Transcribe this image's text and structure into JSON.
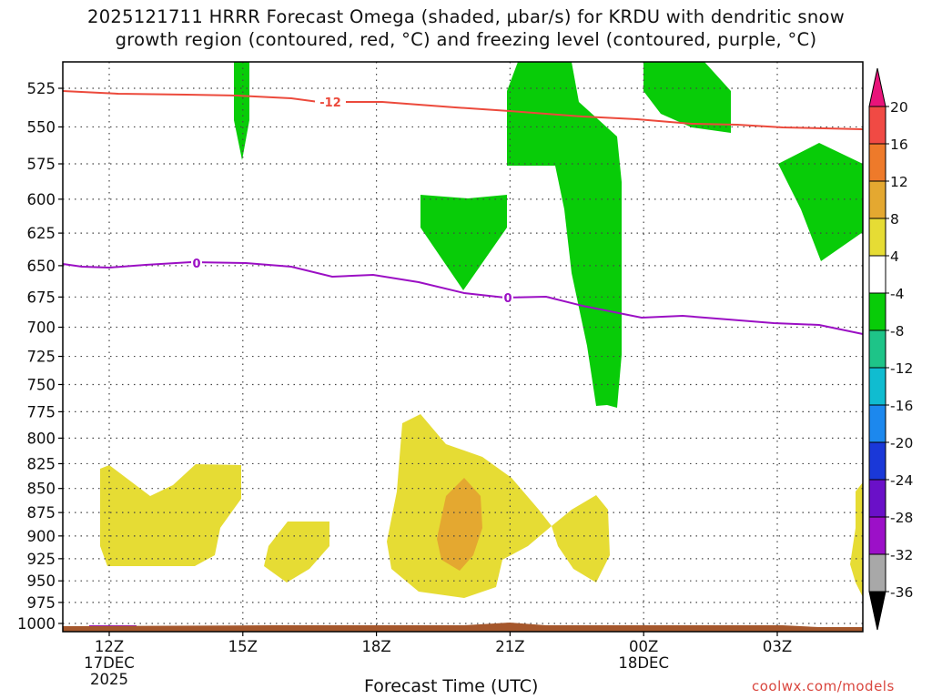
{
  "title_line1": "2025121711 HRRR Forecast Omega (shaded, µbar/s) for KRDU with dendritic snow",
  "title_line2": "growth region (contoured, red, °C) and freezing level (contoured, purple, °C)",
  "x_axis_title": "Forecast Time (UTC)",
  "credit": "coolwx.com/models",
  "colors": {
    "snow_growth_contour": "#ec4a3c",
    "freezing_contour": "#9b0fc4",
    "rising_shade": "#08cc08",
    "sinking_weak": "#e6dc34",
    "sinking_mod": "#e4a830",
    "terrain": "#a5572c"
  },
  "chart_data": {
    "type": "contour",
    "x_ticks": [
      {
        "label": [
          "12Z",
          "17DEC",
          "2025"
        ]
      },
      {
        "label": [
          "15Z"
        ]
      },
      {
        "label": [
          "18Z"
        ]
      },
      {
        "label": [
          "21Z"
        ]
      },
      {
        "label": [
          "00Z",
          "18DEC"
        ]
      },
      {
        "label": [
          "03Z"
        ]
      }
    ],
    "y_ticks": [
      "525",
      "550",
      "575",
      "600",
      "625",
      "650",
      "675",
      "700",
      "725",
      "750",
      "775",
      "800",
      "825",
      "850",
      "875",
      "900",
      "925",
      "950",
      "975",
      "1000"
    ],
    "y_units": "hPa",
    "colorbar": {
      "labels": [
        "20",
        "16",
        "12",
        "8",
        "4",
        "-4",
        "-8",
        "-12",
        "-16",
        "-20",
        "-24",
        "-28",
        "-32",
        "-36"
      ],
      "colors": [
        "#e8147a",
        "#f04a44",
        "#ee7a2a",
        "#e4a830",
        "#e6dc34",
        "#ffffff",
        "#08cc08",
        "#1ec488",
        "#10bcd0",
        "#1c88ee",
        "#1a38d8",
        "#6a10c8",
        "#9c10c8",
        "#a8a8a8",
        "#000000"
      ]
    },
    "contour_labels": [
      {
        "name": "snow-growth-contour-label",
        "text": "-12"
      },
      {
        "name": "freezing-contour-label-1",
        "text": "0"
      },
      {
        "name": "freezing-contour-label-2",
        "text": "0"
      }
    ],
    "grid": true
  }
}
